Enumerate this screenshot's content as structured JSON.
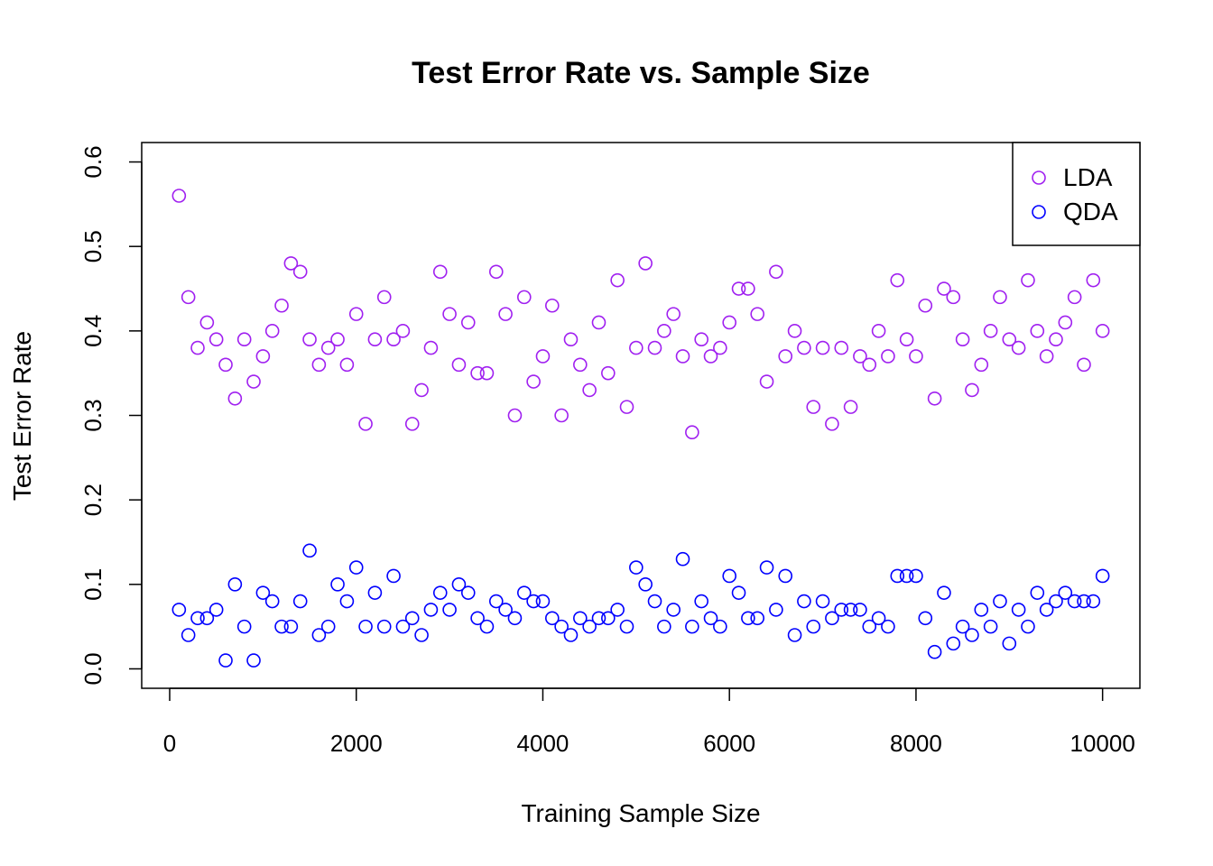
{
  "chart_data": {
    "type": "scatter",
    "title": "Test Error Rate vs. Sample Size",
    "xlabel": "Training Sample Size",
    "ylabel": "Test Error Rate",
    "xlim": [
      -300,
      10400
    ],
    "ylim": [
      -0.023,
      0.623
    ],
    "xticks": [
      0,
      2000,
      4000,
      6000,
      8000,
      10000
    ],
    "xtick_labels": [
      "0",
      "2000",
      "4000",
      "6000",
      "8000",
      "10000"
    ],
    "yticks": [
      0,
      0.1,
      0.2,
      0.3,
      0.4,
      0.5,
      0.6
    ],
    "ytick_labels": [
      "0.0",
      "0.1",
      "0.2",
      "0.3",
      "0.4",
      "0.5",
      "0.6"
    ],
    "grid": false,
    "legend_position": "top-right",
    "x": [
      100,
      200,
      300,
      400,
      500,
      600,
      700,
      800,
      900,
      1000,
      1100,
      1200,
      1300,
      1400,
      1500,
      1600,
      1700,
      1800,
      1900,
      2000,
      2100,
      2200,
      2300,
      2400,
      2500,
      2600,
      2700,
      2800,
      2900,
      3000,
      3100,
      3200,
      3300,
      3400,
      3500,
      3600,
      3700,
      3800,
      3900,
      4000,
      4100,
      4200,
      4300,
      4400,
      4500,
      4600,
      4700,
      4800,
      4900,
      5000,
      5100,
      5200,
      5300,
      5400,
      5500,
      5600,
      5700,
      5800,
      5900,
      6000,
      6100,
      6200,
      6300,
      6400,
      6500,
      6600,
      6700,
      6800,
      6900,
      7000,
      7100,
      7200,
      7300,
      7400,
      7500,
      7600,
      7700,
      7800,
      7900,
      8000,
      8100,
      8200,
      8300,
      8400,
      8500,
      8600,
      8700,
      8800,
      8900,
      9000,
      9100,
      9200,
      9300,
      9400,
      9500,
      9600,
      9700,
      9800,
      9900,
      10000
    ],
    "series": [
      {
        "name": "LDA",
        "color": "#A020F0",
        "values": [
          0.56,
          0.44,
          0.38,
          0.41,
          0.39,
          0.36,
          0.32,
          0.39,
          0.34,
          0.37,
          0.4,
          0.43,
          0.48,
          0.47,
          0.39,
          0.36,
          0.38,
          0.39,
          0.36,
          0.42,
          0.29,
          0.39,
          0.44,
          0.39,
          0.4,
          0.29,
          0.33,
          0.38,
          0.47,
          0.42,
          0.36,
          0.41,
          0.35,
          0.35,
          0.47,
          0.42,
          0.3,
          0.44,
          0.34,
          0.37,
          0.43,
          0.3,
          0.39,
          0.36,
          0.33,
          0.41,
          0.35,
          0.46,
          0.31,
          0.38,
          0.48,
          0.38,
          0.4,
          0.42,
          0.37,
          0.28,
          0.39,
          0.37,
          0.38,
          0.41,
          0.45,
          0.45,
          0.42,
          0.34,
          0.47,
          0.37,
          0.4,
          0.38,
          0.31,
          0.38,
          0.29,
          0.38,
          0.31,
          0.37,
          0.36,
          0.4,
          0.37,
          0.46,
          0.39,
          0.37,
          0.43,
          0.32,
          0.45,
          0.44,
          0.39,
          0.33,
          0.36,
          0.4,
          0.44,
          0.39,
          0.38,
          0.46,
          0.4,
          0.37,
          0.39,
          0.41,
          0.44,
          0.36,
          0.46,
          0.4
        ]
      },
      {
        "name": "QDA",
        "color": "#0000FF",
        "values": [
          0.07,
          0.04,
          0.06,
          0.06,
          0.07,
          0.01,
          0.1,
          0.05,
          0.01,
          0.09,
          0.08,
          0.05,
          0.05,
          0.08,
          0.14,
          0.04,
          0.05,
          0.1,
          0.08,
          0.12,
          0.05,
          0.09,
          0.05,
          0.11,
          0.05,
          0.06,
          0.04,
          0.07,
          0.09,
          0.07,
          0.1,
          0.09,
          0.06,
          0.05,
          0.08,
          0.07,
          0.06,
          0.09,
          0.08,
          0.08,
          0.06,
          0.05,
          0.04,
          0.06,
          0.05,
          0.06,
          0.06,
          0.07,
          0.05,
          0.12,
          0.1,
          0.08,
          0.05,
          0.07,
          0.13,
          0.05,
          0.08,
          0.06,
          0.05,
          0.11,
          0.09,
          0.06,
          0.06,
          0.12,
          0.07,
          0.11,
          0.04,
          0.08,
          0.05,
          0.08,
          0.06,
          0.07,
          0.07,
          0.07,
          0.05,
          0.06,
          0.05,
          0.11,
          0.11,
          0.11,
          0.06,
          0.02,
          0.09,
          0.03,
          0.05,
          0.04,
          0.07,
          0.05,
          0.08,
          0.03,
          0.07,
          0.05,
          0.09,
          0.07,
          0.08,
          0.09,
          0.08,
          0.08,
          0.08,
          0.11
        ]
      }
    ]
  }
}
